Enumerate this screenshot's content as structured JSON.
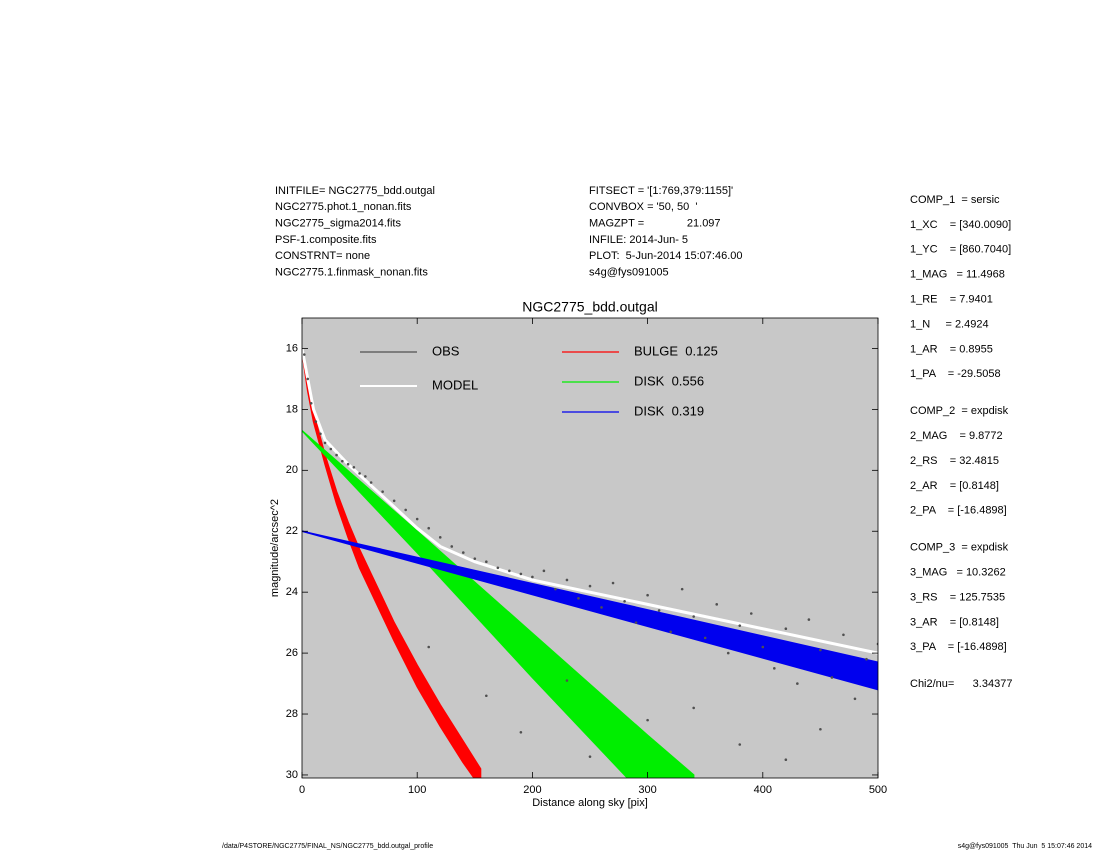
{
  "chart_data": {
    "type": "scatter",
    "title": "NGC2775_bdd.outgal",
    "x_label": "Distance along sky [pix]",
    "y_label": "magnitude/arcsec^2",
    "xlim": [
      0,
      500
    ],
    "ylim": [
      15,
      30.1
    ],
    "y_inverted": true,
    "xticks": [
      0,
      100,
      200,
      300,
      400,
      500
    ],
    "yticks": [
      16,
      18,
      20,
      22,
      24,
      26,
      28,
      30
    ],
    "background": "#c8c8c8",
    "header_left": [
      "INITFILE= NGC2775_bdd.outgal",
      "NGC2775.phot.1_nonan.fits",
      "NGC2775_sigma2014.fits",
      "PSF-1.composite.fits",
      "CONSTRNT= none",
      "NGC2775.1.finmask_nonan.fits"
    ],
    "header_middle": [
      "FITSECT = '[1:769,379:1155]'",
      "CONVBOX = '50, 50  '",
      "MAGZPT =              21.097",
      "INFILE: 2014-Jun- 5",
      "PLOT:  5-Jun-2014 15:07:46.00",
      "s4g@fys091005"
    ],
    "parameters": [
      [
        "COMP_1  = sersic",
        "1_XC    = [340.0090]",
        "1_YC    = [860.7040]",
        "1_MAG   = 11.4968",
        "1_RE    = 7.9401",
        "1_N     = 2.4924",
        "1_AR    = 0.8955",
        "1_PA    = -29.5058"
      ],
      [
        "COMP_2  = expdisk",
        "2_MAG    = 9.8772",
        "2_RS    = 32.4815",
        "2_AR    = [0.8148]",
        "2_PA    = [-16.4898]"
      ],
      [
        "COMP_3  = expdisk",
        "3_MAG   = 10.3262",
        "3_RS    = 125.7535",
        "3_AR    = [0.8148]",
        "3_PA    = [-16.4898]"
      ],
      [
        "Chi2/nu=      3.34377"
      ]
    ],
    "footer_left": "/data/P4STORE/NGC2775/FINAL_NS/NGC2775_bdd.outgal_profile",
    "footer_right": "s4g@fys091005  Thu Jun  5 15:07:46 2014",
    "series": [
      {
        "name": "OBS",
        "kind": "points",
        "color": "#505050",
        "label_color": "#999999",
        "x": [
          2,
          5,
          8,
          12,
          16,
          20,
          25,
          30,
          35,
          40,
          45,
          50,
          55,
          60,
          70,
          80,
          90,
          100,
          110,
          120,
          130,
          140,
          150,
          160,
          170,
          180,
          190,
          200,
          210,
          220,
          230,
          240,
          250,
          260,
          270,
          280,
          290,
          300,
          310,
          320,
          330,
          340,
          350,
          360,
          370,
          380,
          390,
          400,
          410,
          420,
          430,
          440,
          450,
          460,
          470,
          480,
          490,
          500,
          110,
          160,
          230,
          300,
          380,
          450,
          420,
          340,
          250,
          190
        ],
        "values": [
          16.2,
          17.0,
          17.8,
          18.4,
          18.8,
          19.1,
          19.3,
          19.5,
          19.7,
          19.8,
          19.9,
          20.1,
          20.2,
          20.4,
          20.7,
          21.0,
          21.3,
          21.6,
          21.9,
          22.2,
          22.5,
          22.7,
          22.9,
          23.0,
          23.2,
          23.3,
          23.4,
          23.5,
          23.3,
          23.9,
          23.6,
          24.2,
          23.8,
          24.5,
          23.7,
          24.3,
          25.0,
          24.1,
          24.6,
          25.3,
          23.9,
          24.8,
          25.5,
          24.4,
          26.0,
          25.1,
          24.7,
          25.8,
          26.5,
          25.2,
          27.0,
          24.9,
          25.9,
          26.8,
          25.4,
          27.5,
          26.2,
          25.7,
          25.8,
          27.4,
          26.9,
          28.2,
          29.0,
          28.5,
          29.5,
          27.8,
          29.4,
          28.6
        ]
      },
      {
        "name": "MODEL",
        "kind": "line",
        "color": "#ffffff",
        "label_color": "#ffffff",
        "x": [
          0,
          10,
          20,
          40,
          60,
          80,
          100,
          120,
          150,
          200,
          250,
          300,
          400,
          500
        ],
        "values": [
          16.0,
          18.0,
          19.0,
          19.8,
          20.5,
          21.2,
          21.9,
          22.5,
          23.0,
          23.6,
          24.0,
          24.4,
          25.2,
          26.0
        ]
      },
      {
        "name": "BULGE  0.125",
        "kind": "band",
        "color": "#ff0000",
        "label_color": "#ff0000",
        "x": [
          0,
          5,
          10,
          20,
          30,
          40,
          50,
          60,
          80,
          100,
          120,
          140,
          155
        ],
        "values": [
          16.0,
          17.2,
          18.1,
          19.5,
          20.7,
          21.7,
          22.6,
          23.4,
          25.0,
          26.4,
          27.7,
          28.9,
          29.8
        ],
        "values_low": [
          16.1,
          17.4,
          18.4,
          19.8,
          21.1,
          22.2,
          23.2,
          24.0,
          25.6,
          27.1,
          28.4,
          29.6,
          30.4
        ]
      },
      {
        "name": "DISK  0.556",
        "kind": "band",
        "color": "#00ee00",
        "label_color": "#00ee00",
        "x": [
          0,
          100,
          200,
          300,
          340
        ],
        "values": [
          18.7,
          22.0,
          25.35,
          28.7,
          30.0
        ],
        "values_low": [
          18.7,
          22.7,
          26.8,
          30.8,
          32.4
        ]
      },
      {
        "name": "DISK  0.319",
        "kind": "band",
        "color": "#0000ee",
        "label_color": "#0000ee",
        "x": [
          0,
          500
        ],
        "values": [
          22.0,
          26.3
        ],
        "values_low": [
          22.0,
          27.2
        ]
      }
    ]
  }
}
